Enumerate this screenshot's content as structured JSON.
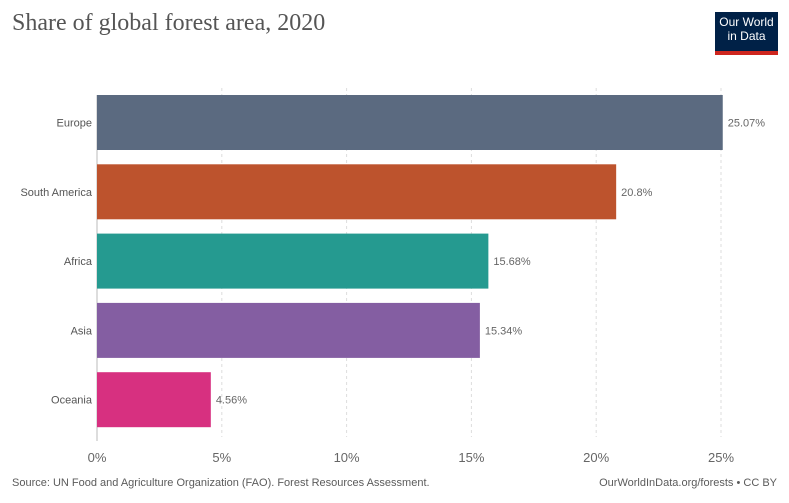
{
  "title": "Share of global forest area, 2020",
  "logo": {
    "line1": "Our World",
    "line2": "in Data"
  },
  "footer": {
    "source": "Source: UN Food and Agriculture Organization (FAO). Forest Resources Assessment.",
    "credit": "OurWorldInData.org/forests • CC BY"
  },
  "chart_data": {
    "type": "bar",
    "orientation": "horizontal",
    "categories": [
      "Europe",
      "South America",
      "Africa",
      "Asia",
      "Oceania"
    ],
    "values": [
      25.07,
      20.8,
      15.68,
      15.34,
      4.56
    ],
    "value_labels": [
      "25.07%",
      "20.8%",
      "15.68%",
      "15.34%",
      "4.56%"
    ],
    "colors": [
      "#5b6a80",
      "#bd532d",
      "#259a90",
      "#845ea2",
      "#d73080"
    ],
    "xlim": [
      0,
      25
    ],
    "xticks": [
      0,
      5,
      10,
      15,
      20,
      25
    ],
    "xtick_labels": [
      "0%",
      "5%",
      "10%",
      "15%",
      "20%",
      "25%"
    ],
    "grid": "vertical dashed",
    "title": "Share of global forest area, 2020"
  }
}
